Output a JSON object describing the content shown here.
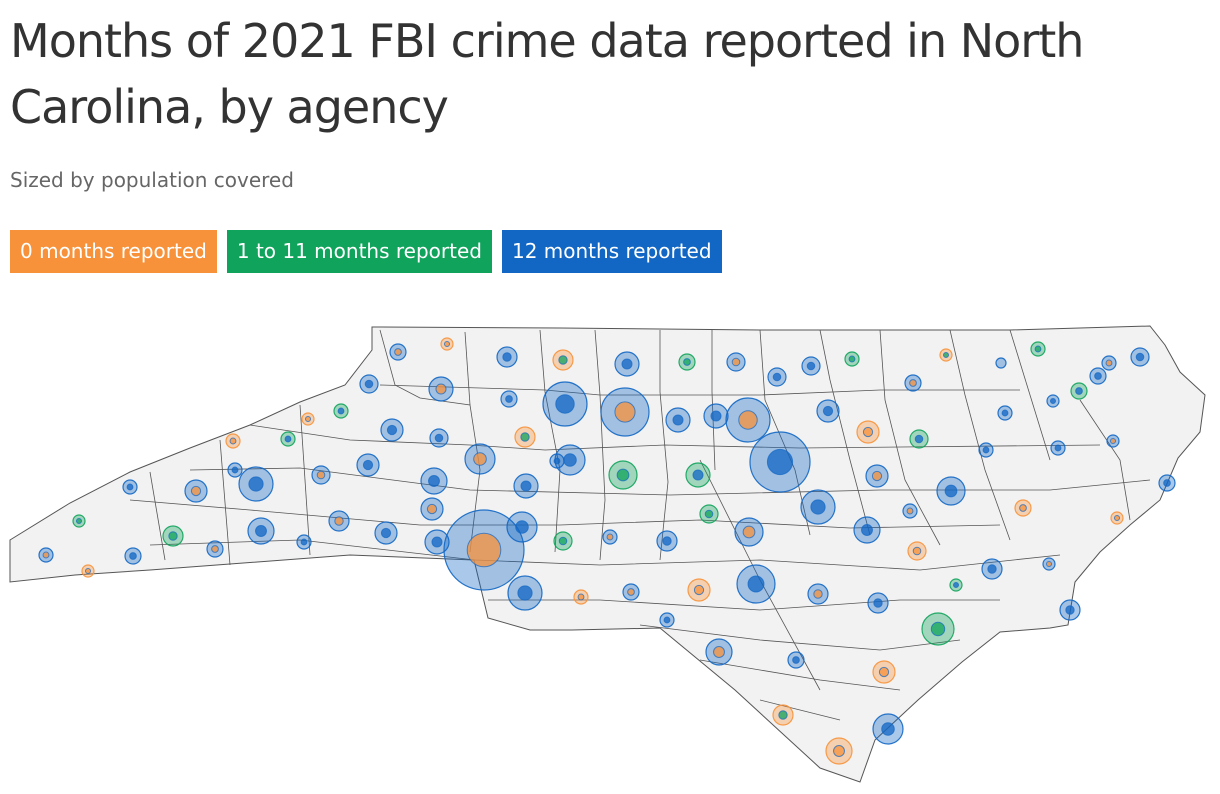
{
  "title": "Months of 2021 FBI crime data reported in North Carolina, by agency",
  "subtitle": "Sized by population covered",
  "legend": [
    {
      "label": "0 months reported",
      "color": "#f7923a"
    },
    {
      "label": "1 to 11 months reported",
      "color": "#10a35b"
    },
    {
      "label": "12 months reported",
      "color": "#1267c4"
    }
  ],
  "map": {
    "region": "North Carolina",
    "land_color": "#f2f2f2",
    "border_color": "#555555",
    "marker_opacity": 0.45
  }
}
